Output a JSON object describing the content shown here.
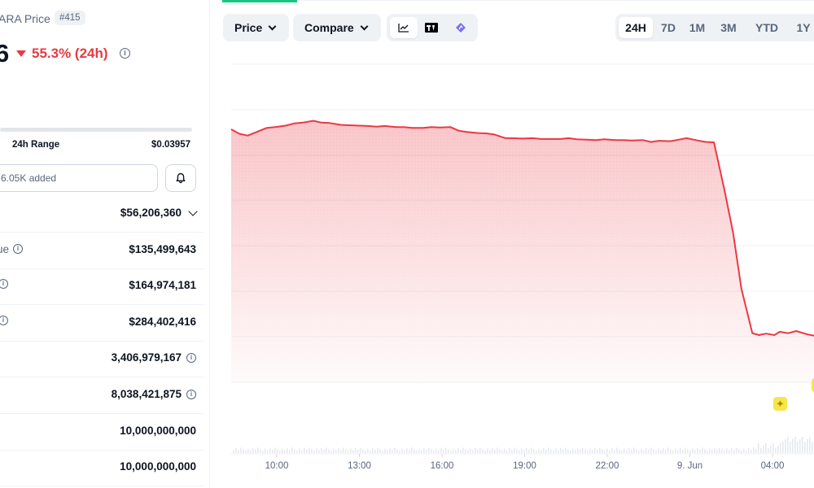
{
  "coin": {
    "name_partial": "ARA Price",
    "rank": "#415",
    "price_partial": "6",
    "change": "55.3% (24h)",
    "direction": "down",
    "color_down": "#ea3943"
  },
  "range": {
    "label": "24h Range",
    "high": "$0.03957"
  },
  "watchlist": {
    "added_text": "6.05K added"
  },
  "stats": [
    {
      "label": "",
      "value": "$56,206,360",
      "has_chevron": true,
      "has_info": false,
      "label_info": false
    },
    {
      "label": "ue",
      "value": "$135,499,643",
      "has_chevron": false,
      "has_info": false,
      "label_info": true
    },
    {
      "label": "",
      "value": "$164,974,181",
      "has_chevron": false,
      "has_info": false,
      "label_info": true
    },
    {
      "label": "",
      "value": "$284,402,416",
      "has_chevron": false,
      "has_info": false,
      "label_info": true
    },
    {
      "label": "",
      "value": "3,406,979,167",
      "has_chevron": false,
      "has_info": true,
      "label_info": false
    },
    {
      "label": "",
      "value": "8,038,421,875",
      "has_chevron": false,
      "has_info": true,
      "label_info": false
    },
    {
      "label": "",
      "value": "10,000,000,000",
      "has_chevron": false,
      "has_info": false,
      "label_info": false
    },
    {
      "label": "",
      "value": "10,000,000,000",
      "has_chevron": false,
      "has_info": false,
      "label_info": false
    }
  ],
  "toolbar": {
    "price_label": "Price",
    "compare_label": "Compare",
    "chart_types": [
      "line-chart-icon",
      "tradingview-icon",
      "candlestick-logo-icon"
    ],
    "ranges": [
      "24H",
      "7D",
      "1M",
      "3M",
      "YTD",
      "1Y"
    ],
    "active_range": "24H"
  },
  "chart_data": {
    "type": "area",
    "color": "#ea3943",
    "x_ticks": [
      "10:00",
      "13:00",
      "16:00",
      "19:00",
      "22:00",
      "9. Jun",
      "04:00"
    ],
    "x_hours": [
      0,
      0.3,
      0.6,
      1.0,
      1.3,
      1.6,
      2.0,
      2.3,
      2.6,
      3.0,
      3.3,
      3.6,
      4.0,
      4.3,
      4.6,
      5.0,
      5.3,
      5.6,
      6.0,
      6.3,
      6.6,
      7.0,
      7.3,
      7.6,
      8.0,
      8.3,
      8.6,
      9.0,
      9.3,
      9.6,
      10.0,
      10.3,
      10.6,
      11.0,
      11.3,
      11.6,
      12.0,
      12.3,
      12.6,
      13.0,
      13.3,
      13.6,
      14.0,
      14.3,
      14.6,
      15.0,
      15.3,
      15.6,
      16.0,
      16.3,
      16.6,
      17.0,
      17.3,
      17.6,
      18.0,
      18.3,
      18.6,
      19.0,
      19.2,
      19.25,
      19.3,
      19.5,
      19.8,
      20.0,
      20.3,
      20.6,
      21.0,
      21.3
    ],
    "values": [
      100,
      98.8,
      98.3,
      99.5,
      100.4,
      100.6,
      101.0,
      101.6,
      101.8,
      102.3,
      101.8,
      101.7,
      101.2,
      101.1,
      101.0,
      100.9,
      100.7,
      100.9,
      100.6,
      100.6,
      100.4,
      100.4,
      100.6,
      100.5,
      100.6,
      99.6,
      99.3,
      99.0,
      98.9,
      98.6,
      97.6,
      97.6,
      97.5,
      97.6,
      97.4,
      97.4,
      97.4,
      97.6,
      97.3,
      97.2,
      97.1,
      97.3,
      97.1,
      97.1,
      97.0,
      97.1,
      96.6,
      96.9,
      96.8,
      97.2,
      97.6,
      97.0,
      96.6,
      96.5,
      83.0,
      72.0,
      57.0,
      45.0,
      44.6,
      44.5,
      44.6,
      44.9,
      44.5,
      45.4,
      45.0,
      45.6,
      44.7,
      44.3
    ]
  }
}
